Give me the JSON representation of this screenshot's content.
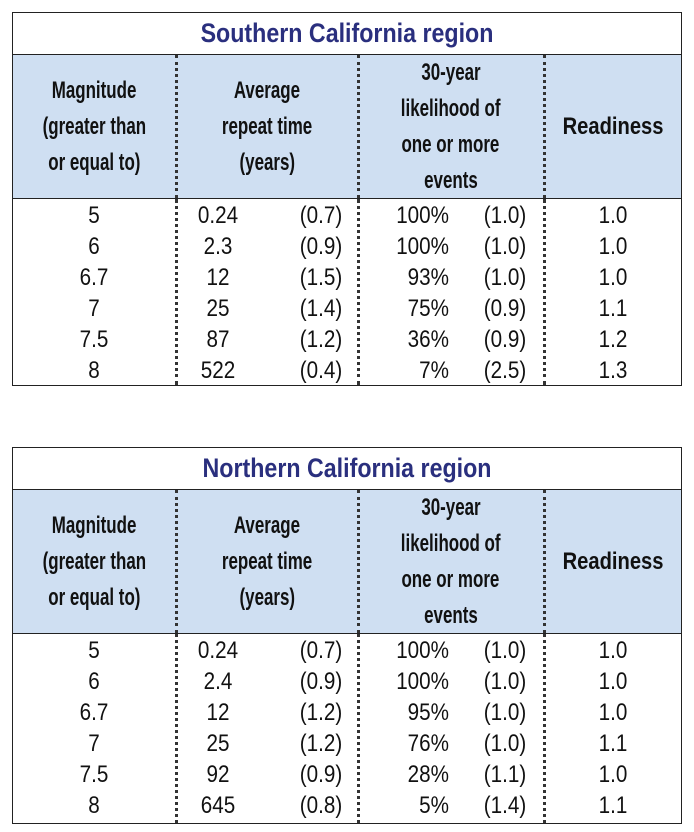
{
  "tables": [
    {
      "title": "Southern California region",
      "headers": {
        "magnitude": [
          "Magnitude",
          "(greater than",
          "or equal to)"
        ],
        "repeat": [
          "Average",
          "repeat time",
          "(years)"
        ],
        "likelihood": [
          "30-year",
          "likelihood of",
          "one or more",
          "events"
        ],
        "readiness": [
          "Readiness"
        ]
      },
      "rows": [
        {
          "magnitude": "5",
          "repeat": "0.24",
          "repeat_unc": "(0.7)",
          "likelihood": "100%",
          "likelihood_unc": "(1.0)",
          "readiness": "1.0"
        },
        {
          "magnitude": "6",
          "repeat": "2.3",
          "repeat_unc": "(0.9)",
          "likelihood": "100%",
          "likelihood_unc": "(1.0)",
          "readiness": "1.0"
        },
        {
          "magnitude": "6.7",
          "repeat": "12",
          "repeat_unc": "(1.5)",
          "likelihood": "93%",
          "likelihood_unc": "(1.0)",
          "readiness": "1.0"
        },
        {
          "magnitude": "7",
          "repeat": "25",
          "repeat_unc": "(1.4)",
          "likelihood": "75%",
          "likelihood_unc": "(0.9)",
          "readiness": "1.1"
        },
        {
          "magnitude": "7.5",
          "repeat": "87",
          "repeat_unc": "(1.2)",
          "likelihood": "36%",
          "likelihood_unc": "(0.9)",
          "readiness": "1.2"
        },
        {
          "magnitude": "8",
          "repeat": "522",
          "repeat_unc": "(0.4)",
          "likelihood": "7%",
          "likelihood_unc": "(2.5)",
          "readiness": "1.3"
        }
      ]
    },
    {
      "title": "Northern California region",
      "headers": {
        "magnitude": [
          "Magnitude",
          "(greater than",
          "or equal to)"
        ],
        "repeat": [
          "Average",
          "repeat time",
          "(years)"
        ],
        "likelihood": [
          "30-year",
          "likelihood of",
          "one or more",
          "events"
        ],
        "readiness": [
          "Readiness"
        ]
      },
      "rows": [
        {
          "magnitude": "5",
          "repeat": "0.24",
          "repeat_unc": "(0.7)",
          "likelihood": "100%",
          "likelihood_unc": "(1.0)",
          "readiness": "1.0"
        },
        {
          "magnitude": "6",
          "repeat": "2.4",
          "repeat_unc": "(0.9)",
          "likelihood": "100%",
          "likelihood_unc": "(1.0)",
          "readiness": "1.0"
        },
        {
          "magnitude": "6.7",
          "repeat": "12",
          "repeat_unc": "(1.2)",
          "likelihood": "95%",
          "likelihood_unc": "(1.0)",
          "readiness": "1.0"
        },
        {
          "magnitude": "7",
          "repeat": "25",
          "repeat_unc": "(1.2)",
          "likelihood": "76%",
          "likelihood_unc": "(1.0)",
          "readiness": "1.1"
        },
        {
          "magnitude": "7.5",
          "repeat": "92",
          "repeat_unc": "(0.9)",
          "likelihood": "28%",
          "likelihood_unc": "(1.1)",
          "readiness": "1.0"
        },
        {
          "magnitude": "8",
          "repeat": "645",
          "repeat_unc": "(0.8)",
          "likelihood": "5%",
          "likelihood_unc": "(1.4)",
          "readiness": "1.1"
        }
      ]
    }
  ]
}
